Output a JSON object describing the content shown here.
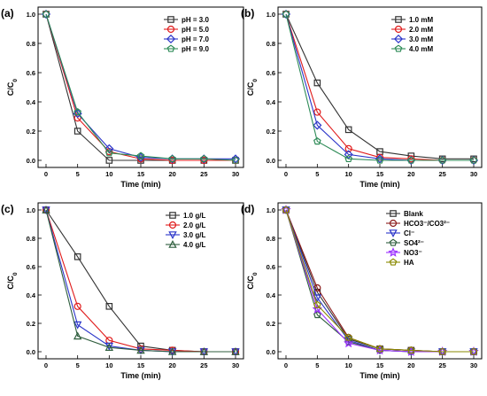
{
  "colors": {
    "black": "#333333",
    "red": "#e01b1b",
    "blue": "#2b35c9",
    "green": "#2e8b57",
    "purple": "#9b30ff",
    "olive": "#8a8a00",
    "maroon": "#8b1a1a",
    "darkgreen": "#2f5e3e"
  },
  "chart_data": [
    {
      "type": "line",
      "panel": "(a)",
      "xlabel": "Time (min)",
      "ylabel": "C/C0",
      "xlim": [
        0,
        30
      ],
      "ylim": [
        0,
        1.0
      ],
      "xticks": [
        "0",
        "5",
        "10",
        "15",
        "20",
        "25",
        "30"
      ],
      "yticks": [
        "0.0",
        "0.2",
        "0.4",
        "0.6",
        "0.8",
        "1.0"
      ],
      "legend_position": "top-right",
      "x": [
        0,
        5,
        10,
        15,
        20,
        25,
        30
      ],
      "series": [
        {
          "name": "pH = 3.0",
          "color": "black",
          "marker": "square",
          "values": [
            1.0,
            0.2,
            0.0,
            0.0,
            0.0,
            0.0,
            0.0
          ]
        },
        {
          "name": "pH = 5.0",
          "color": "red",
          "marker": "circle",
          "values": [
            1.0,
            0.29,
            0.06,
            0.01,
            0.0,
            0.0,
            0.0
          ]
        },
        {
          "name": "pH = 7.0",
          "color": "blue",
          "marker": "diamond",
          "values": [
            1.0,
            0.32,
            0.08,
            0.02,
            0.01,
            0.01,
            0.01
          ]
        },
        {
          "name": "pH = 9.0",
          "color": "green",
          "marker": "pentagon",
          "values": [
            1.0,
            0.33,
            0.05,
            0.03,
            0.01,
            0.01,
            0.0
          ]
        }
      ]
    },
    {
      "type": "line",
      "panel": "(b)",
      "xlabel": "Time (min)",
      "ylabel": "C/C0",
      "xlim": [
        0,
        30
      ],
      "ylim": [
        0,
        1.0
      ],
      "xticks": [
        "0",
        "5",
        "10",
        "15",
        "20",
        "25",
        "30"
      ],
      "yticks": [
        "0.0",
        "0.2",
        "0.4",
        "0.6",
        "0.8",
        "1.0"
      ],
      "legend_position": "top-right",
      "x": [
        0,
        5,
        10,
        15,
        20,
        25,
        30
      ],
      "series": [
        {
          "name": "1.0 mM",
          "color": "black",
          "marker": "square",
          "values": [
            1.0,
            0.53,
            0.21,
            0.06,
            0.03,
            0.01,
            0.01
          ]
        },
        {
          "name": "2.0 mM",
          "color": "red",
          "marker": "circle",
          "values": [
            1.0,
            0.33,
            0.08,
            0.02,
            0.01,
            0.0,
            0.0
          ]
        },
        {
          "name": "3.0 mM",
          "color": "blue",
          "marker": "diamond",
          "values": [
            1.0,
            0.24,
            0.04,
            0.01,
            0.0,
            0.0,
            0.0
          ]
        },
        {
          "name": "4.0 mM",
          "color": "green",
          "marker": "pentagon",
          "values": [
            1.0,
            0.13,
            0.01,
            0.0,
            0.0,
            0.0,
            0.0
          ]
        }
      ]
    },
    {
      "type": "line",
      "panel": "(c)",
      "xlabel": "Time (min)",
      "ylabel": "C/C0",
      "xlim": [
        0,
        30
      ],
      "ylim": [
        0,
        1.0
      ],
      "xticks": [
        "0",
        "5",
        "10",
        "15",
        "20",
        "25",
        "30"
      ],
      "yticks": [
        "0.0",
        "0.2",
        "0.4",
        "0.6",
        "0.8",
        "1.0"
      ],
      "legend_position": "top-right",
      "x": [
        0,
        5,
        10,
        15,
        20,
        25,
        30
      ],
      "series": [
        {
          "name": "1.0 g/L",
          "color": "black",
          "marker": "square",
          "values": [
            1.0,
            0.67,
            0.32,
            0.04,
            0.01,
            0.0,
            0.0
          ]
        },
        {
          "name": "2.0 g/L",
          "color": "red",
          "marker": "circle",
          "values": [
            1.0,
            0.32,
            0.08,
            0.02,
            0.01,
            0.0,
            0.0
          ]
        },
        {
          "name": "3.0 g/L",
          "color": "blue",
          "marker": "triangle-down",
          "values": [
            1.0,
            0.19,
            0.04,
            0.01,
            0.0,
            0.0,
            0.0
          ]
        },
        {
          "name": "4.0 g/L",
          "color": "darkgreen",
          "marker": "triangle-up",
          "values": [
            1.0,
            0.11,
            0.03,
            0.01,
            0.0,
            0.0,
            0.0
          ]
        }
      ]
    },
    {
      "type": "line",
      "panel": "(d)",
      "xlabel": "Time (min)",
      "ylabel": "C/C0",
      "xlim": [
        0,
        30
      ],
      "ylim": [
        0,
        1.0
      ],
      "xticks": [
        "0",
        "5",
        "10",
        "15",
        "20",
        "25",
        "30"
      ],
      "yticks": [
        "0.0",
        "0.2",
        "0.4",
        "0.6",
        "0.8",
        "1.0"
      ],
      "legend_position": "top-right",
      "x": [
        0,
        5,
        10,
        15,
        20,
        25,
        30
      ],
      "series": [
        {
          "name": "Blank",
          "color": "black",
          "marker": "square",
          "values": [
            1.0,
            0.42,
            0.09,
            0.02,
            0.01,
            0.0,
            0.0
          ]
        },
        {
          "name": "HCO3⁻/CO3²⁻",
          "color": "maroon",
          "marker": "circle",
          "values": [
            1.0,
            0.45,
            0.1,
            0.02,
            0.01,
            0.0,
            0.0
          ]
        },
        {
          "name": "Cl⁻",
          "color": "blue",
          "marker": "triangle-down",
          "values": [
            1.0,
            0.38,
            0.08,
            0.01,
            0.0,
            0.0,
            0.0
          ]
        },
        {
          "name": "SO4²⁻",
          "color": "darkgreen",
          "marker": "pentagon",
          "values": [
            1.0,
            0.26,
            0.07,
            0.01,
            0.0,
            0.0,
            0.0
          ]
        },
        {
          "name": "NO3⁻",
          "color": "purple",
          "marker": "star",
          "values": [
            1.0,
            0.3,
            0.06,
            0.01,
            0.0,
            0.0,
            0.0
          ]
        },
        {
          "name": "HA",
          "color": "olive",
          "marker": "pentagon",
          "values": [
            1.0,
            0.33,
            0.1,
            0.02,
            0.01,
            0.0,
            0.0
          ]
        }
      ]
    }
  ]
}
